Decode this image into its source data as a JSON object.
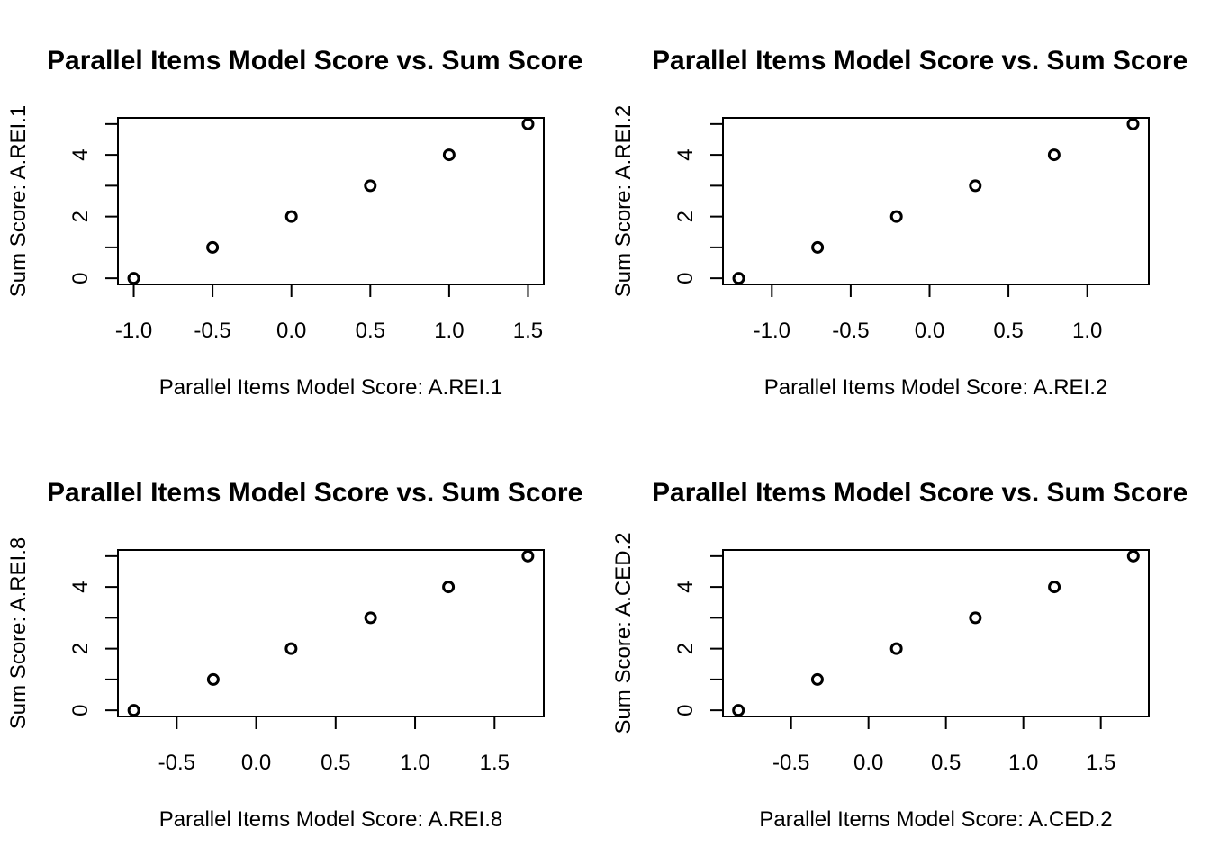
{
  "chart_data": [
    {
      "type": "scatter",
      "title": "Parallel Items Model Score vs. Sum Score",
      "xlabel": "Parallel Items Model Score: A.REI.1",
      "ylabel": "Sum Score: A.REI.1",
      "x": [
        -1.0,
        -0.5,
        0.0,
        0.5,
        1.0,
        1.5
      ],
      "y": [
        0,
        1,
        2,
        3,
        4,
        5
      ],
      "xlim": [
        -1.1,
        1.6
      ],
      "ylim": [
        -0.2,
        5.2
      ],
      "xticks": [
        -1.0,
        -0.5,
        0.0,
        0.5,
        1.0,
        1.5
      ],
      "xtick_labels": [
        "-1.0",
        "-0.5",
        "0.0",
        "0.5",
        "1.0",
        "1.5"
      ],
      "yticks": [
        0,
        1,
        2,
        3,
        4,
        5
      ],
      "ytick_labels": [
        "0",
        "",
        "2",
        "",
        "4",
        ""
      ],
      "grid": false
    },
    {
      "type": "scatter",
      "title": "Parallel Items Model Score vs. Sum Score",
      "xlabel": "Parallel Items Model Score: A.REI.2",
      "ylabel": "Sum Score: A.REI.2",
      "x": [
        -1.21,
        -0.71,
        -0.21,
        0.29,
        0.79,
        1.29
      ],
      "y": [
        0,
        1,
        2,
        3,
        4,
        5
      ],
      "xlim": [
        -1.31,
        1.39
      ],
      "ylim": [
        -0.2,
        5.2
      ],
      "xticks": [
        -1.0,
        -0.5,
        0.0,
        0.5,
        1.0
      ],
      "xtick_labels": [
        "-1.0",
        "-0.5",
        "0.0",
        "0.5",
        "1.0"
      ],
      "yticks": [
        0,
        1,
        2,
        3,
        4,
        5
      ],
      "ytick_labels": [
        "0",
        "",
        "2",
        "",
        "4",
        ""
      ],
      "grid": false
    },
    {
      "type": "scatter",
      "title": "Parallel Items Model Score vs. Sum Score",
      "xlabel": "Parallel Items Model Score: A.REI.8",
      "ylabel": "Sum Score: A.REI.8",
      "x": [
        -0.77,
        -0.27,
        0.22,
        0.72,
        1.21,
        1.71
      ],
      "y": [
        0,
        1,
        2,
        3,
        4,
        5
      ],
      "xlim": [
        -0.87,
        1.81
      ],
      "ylim": [
        -0.2,
        5.2
      ],
      "xticks": [
        -0.5,
        0.0,
        0.5,
        1.0,
        1.5
      ],
      "xtick_labels": [
        "-0.5",
        "0.0",
        "0.5",
        "1.0",
        "1.5"
      ],
      "yticks": [
        0,
        1,
        2,
        3,
        4,
        5
      ],
      "ytick_labels": [
        "0",
        "",
        "2",
        "",
        "4",
        ""
      ],
      "grid": false
    },
    {
      "type": "scatter",
      "title": "Parallel Items Model Score vs. Sum Score",
      "xlabel": "Parallel Items Model Score: A.CED.2",
      "ylabel": "Sum Score: A.CED.2",
      "x": [
        -0.84,
        -0.33,
        0.18,
        0.69,
        1.2,
        1.71
      ],
      "y": [
        0,
        1,
        2,
        3,
        4,
        5
      ],
      "xlim": [
        -0.94,
        1.81
      ],
      "ylim": [
        -0.2,
        5.2
      ],
      "xticks": [
        -0.5,
        0.0,
        0.5,
        1.0,
        1.5
      ],
      "xtick_labels": [
        "-0.5",
        "0.0",
        "0.5",
        "1.0",
        "1.5"
      ],
      "yticks": [
        0,
        1,
        2,
        3,
        4,
        5
      ],
      "ytick_labels": [
        "0",
        "",
        "2",
        "",
        "4",
        ""
      ],
      "grid": false
    }
  ]
}
